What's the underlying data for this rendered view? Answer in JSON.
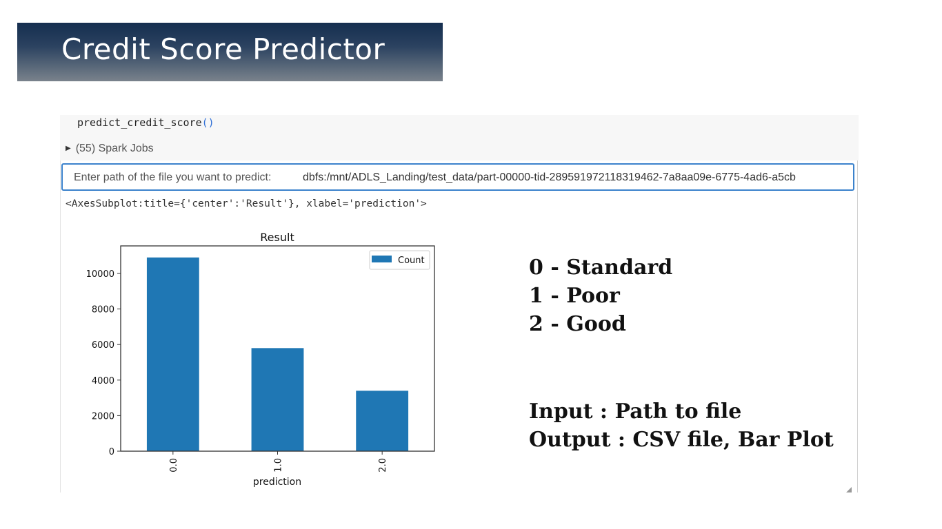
{
  "slide": {
    "title": "Credit Score Predictor"
  },
  "cell": {
    "code": "predict_credit_score",
    "code_parens": "()",
    "spark_jobs": "(55) Spark Jobs",
    "input_prompt": "Enter path of the file you want to predict:",
    "input_value": "dbfs:/mnt/ADLS_Landing/test_data/part-00000-tid-289591972118319462-7a8aa09e-6775-4ad6-a5cb",
    "axes_repr": "<AxesSubplot:title={'center':'Result'}, xlabel='prediction'>"
  },
  "chart_data": {
    "type": "bar",
    "title": "Result",
    "xlabel": "prediction",
    "ylabel": "",
    "categories": [
      "0.0",
      "1.0",
      "2.0"
    ],
    "series": [
      {
        "name": "Count",
        "values": [
          10900,
          5800,
          3400
        ],
        "color": "#1f77b4"
      }
    ],
    "ylim": [
      0,
      11550
    ],
    "yticks": [
      0,
      2000,
      4000,
      6000,
      8000,
      10000
    ],
    "legend_position": "top-right",
    "grid": false
  },
  "annotations": {
    "class_labels": [
      "0 - Standard",
      "1 - Poor",
      "2 - Good"
    ],
    "io_labels": [
      "Input : Path to file",
      "Output : CSV file, Bar Plot"
    ]
  }
}
